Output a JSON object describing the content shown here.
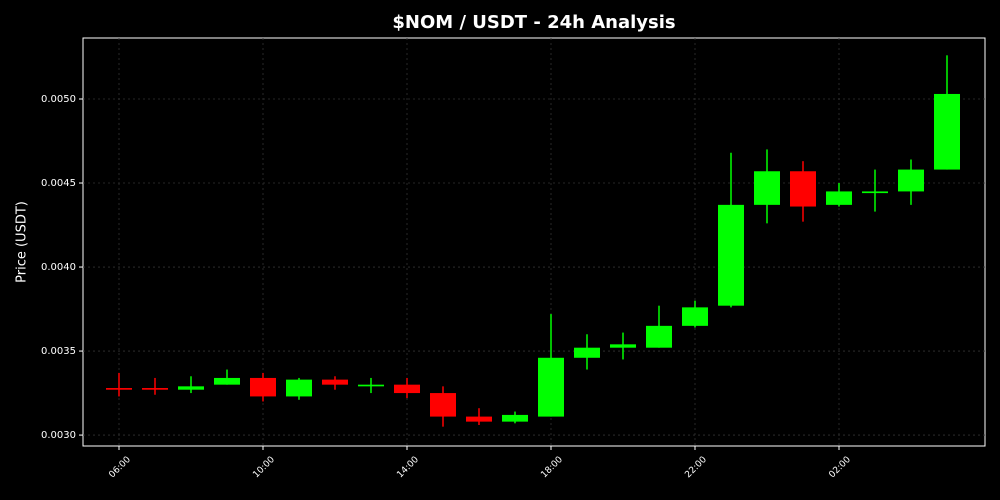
{
  "chart_data": {
    "type": "candlestick",
    "title": "$NOM / USDT - 24h Analysis",
    "y_label": "Price (USDT)",
    "categories": [
      "06:00",
      null,
      null,
      null,
      "10:00",
      null,
      null,
      null,
      "14:00",
      null,
      null,
      null,
      "18:00",
      null,
      null,
      null,
      "22:00",
      null,
      null,
      null,
      "02:00",
      null,
      null,
      null
    ],
    "open": [
      0.00328,
      0.00328,
      0.00327,
      0.0033,
      0.00334,
      0.00323,
      0.00333,
      0.00329,
      0.0033,
      0.00325,
      0.00311,
      0.00308,
      0.00311,
      0.00346,
      0.00352,
      0.00352,
      0.00365,
      0.00377,
      0.00437,
      0.00457,
      0.00437,
      0.00444,
      0.00445,
      0.00458
    ],
    "high": [
      0.00337,
      0.00334,
      0.00335,
      0.00339,
      0.00337,
      0.00334,
      0.00335,
      0.00334,
      0.00334,
      0.00329,
      0.00316,
      0.00314,
      0.00372,
      0.0036,
      0.00361,
      0.00377,
      0.0038,
      0.00468,
      0.0047,
      0.00463,
      0.0045,
      0.00458,
      0.00464,
      0.00526
    ],
    "low": [
      0.00323,
      0.00324,
      0.00325,
      0.0033,
      0.0032,
      0.00321,
      0.00327,
      0.00325,
      0.00322,
      0.00305,
      0.00306,
      0.00307,
      0.00311,
      0.00339,
      0.00345,
      0.00352,
      0.00364,
      0.00376,
      0.00426,
      0.00427,
      0.00436,
      0.00433,
      0.00437,
      0.00458
    ],
    "close": [
      0.00327,
      0.00327,
      0.00329,
      0.00334,
      0.00323,
      0.00333,
      0.0033,
      0.0033,
      0.00325,
      0.00311,
      0.00308,
      0.00312,
      0.00346,
      0.00352,
      0.00354,
      0.00365,
      0.00376,
      0.00437,
      0.00457,
      0.00436,
      0.00445,
      0.00445,
      0.00458,
      0.00503
    ],
    "up_color": "#00ff00",
    "down_color": "#ff0000",
    "ylim": [
      0.002935,
      0.005363
    ],
    "yticks": [
      {
        "value": 0.003,
        "label": "0.0030"
      },
      0.0035,
      {
        "value": 0.004,
        "label": "0.0040"
      },
      0.0045,
      {
        "value": 0.005,
        "label": "0.0050"
      }
    ],
    "grid": true
  }
}
